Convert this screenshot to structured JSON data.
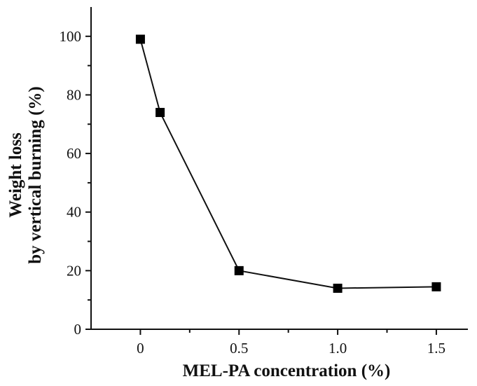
{
  "chart_data": {
    "type": "line",
    "title": "",
    "xlabel": "MEL-PA concentration (%)",
    "ylabel_lines": [
      "Weight loss",
      "by vertical burning (%)"
    ],
    "xlim": [
      -0.25,
      1.66
    ],
    "ylim": [
      0,
      110
    ],
    "xticks": [
      0,
      0.5,
      1.0,
      1.5
    ],
    "xtick_labels": [
      "0",
      "0.5",
      "1.0",
      "1.5"
    ],
    "xminor_ticks": [
      0.25,
      0.75,
      1.25
    ],
    "yticks": [
      0,
      20,
      40,
      60,
      80,
      100
    ],
    "ytick_labels": [
      "0",
      "20",
      "40",
      "60",
      "80",
      "100"
    ],
    "yminor_ticks": [
      10,
      30,
      50,
      70,
      90
    ],
    "grid": false,
    "legend": "none",
    "series": [
      {
        "x": [
          0,
          0.1,
          0.5,
          1.0,
          1.5
        ],
        "y": [
          99,
          74,
          20,
          14,
          14.5
        ],
        "marker": "square",
        "color": "#000000"
      }
    ]
  }
}
